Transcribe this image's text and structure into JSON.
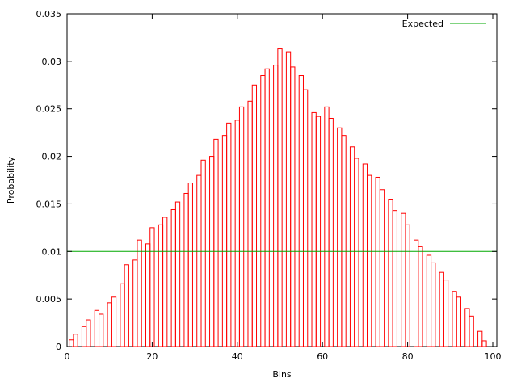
{
  "chart_data": {
    "type": "bar",
    "title": "",
    "xlabel": "Bins",
    "ylabel": "Probability",
    "xlim": [
      0,
      101
    ],
    "ylim": [
      0,
      0.035
    ],
    "grid": false,
    "x_tick_labels": [
      "0",
      "20",
      "40",
      "60",
      "80",
      "100"
    ],
    "x_tick_values": [
      0,
      20,
      40,
      60,
      80,
      100
    ],
    "y_tick_labels": [
      "0",
      "0.005",
      "0.01",
      "0.015",
      "0.02",
      "0.025",
      "0.03",
      "0.035"
    ],
    "y_tick_values": [
      0,
      0.005,
      0.01,
      0.015,
      0.02,
      0.025,
      0.03,
      0.035
    ],
    "legend": {
      "label": "Expected",
      "position": "top-right-inside"
    },
    "expected_value": 0.01,
    "colors": {
      "bars": "#ff0000",
      "expected": "#00a800",
      "axis": "#000000",
      "background": "#ffffff"
    },
    "bar_pairs": [
      [
        0,
        0.0007,
        0.0013
      ],
      [
        3,
        0.0021,
        0.0028
      ],
      [
        6,
        0.0038,
        0.0034
      ],
      [
        9,
        0.0046,
        0.0052
      ],
      [
        12,
        0.0066,
        0.0086
      ],
      [
        15,
        0.0091,
        0.0112
      ],
      [
        18,
        0.0108,
        0.0125
      ],
      [
        21,
        0.0128,
        0.0136
      ],
      [
        24,
        0.0144,
        0.0152
      ],
      [
        27,
        0.0161,
        0.0172
      ],
      [
        30,
        0.018,
        0.0196
      ],
      [
        33,
        0.02,
        0.0218
      ],
      [
        36,
        0.0222,
        0.0235
      ],
      [
        39,
        0.0238,
        0.0252
      ],
      [
        42,
        0.0258,
        0.0275
      ],
      [
        45,
        0.0285,
        0.0292
      ],
      [
        48,
        0.0296,
        0.0313
      ],
      [
        51,
        0.031,
        0.0294
      ],
      [
        54,
        0.0285,
        0.027
      ],
      [
        57,
        0.0246,
        0.0242
      ],
      [
        60,
        0.0252,
        0.024
      ],
      [
        63,
        0.023,
        0.0222
      ],
      [
        66,
        0.021,
        0.0198
      ],
      [
        69,
        0.0192,
        0.018
      ],
      [
        72,
        0.0178,
        0.0165
      ],
      [
        75,
        0.0155,
        0.0143
      ],
      [
        78,
        0.014,
        0.0128
      ],
      [
        81,
        0.0112,
        0.0105
      ],
      [
        84,
        0.0096,
        0.0088
      ],
      [
        87,
        0.0078,
        0.007
      ],
      [
        90,
        0.0058,
        0.0052
      ],
      [
        93,
        0.004,
        0.0032
      ],
      [
        96,
        0.0016,
        0.0006
      ]
    ]
  }
}
